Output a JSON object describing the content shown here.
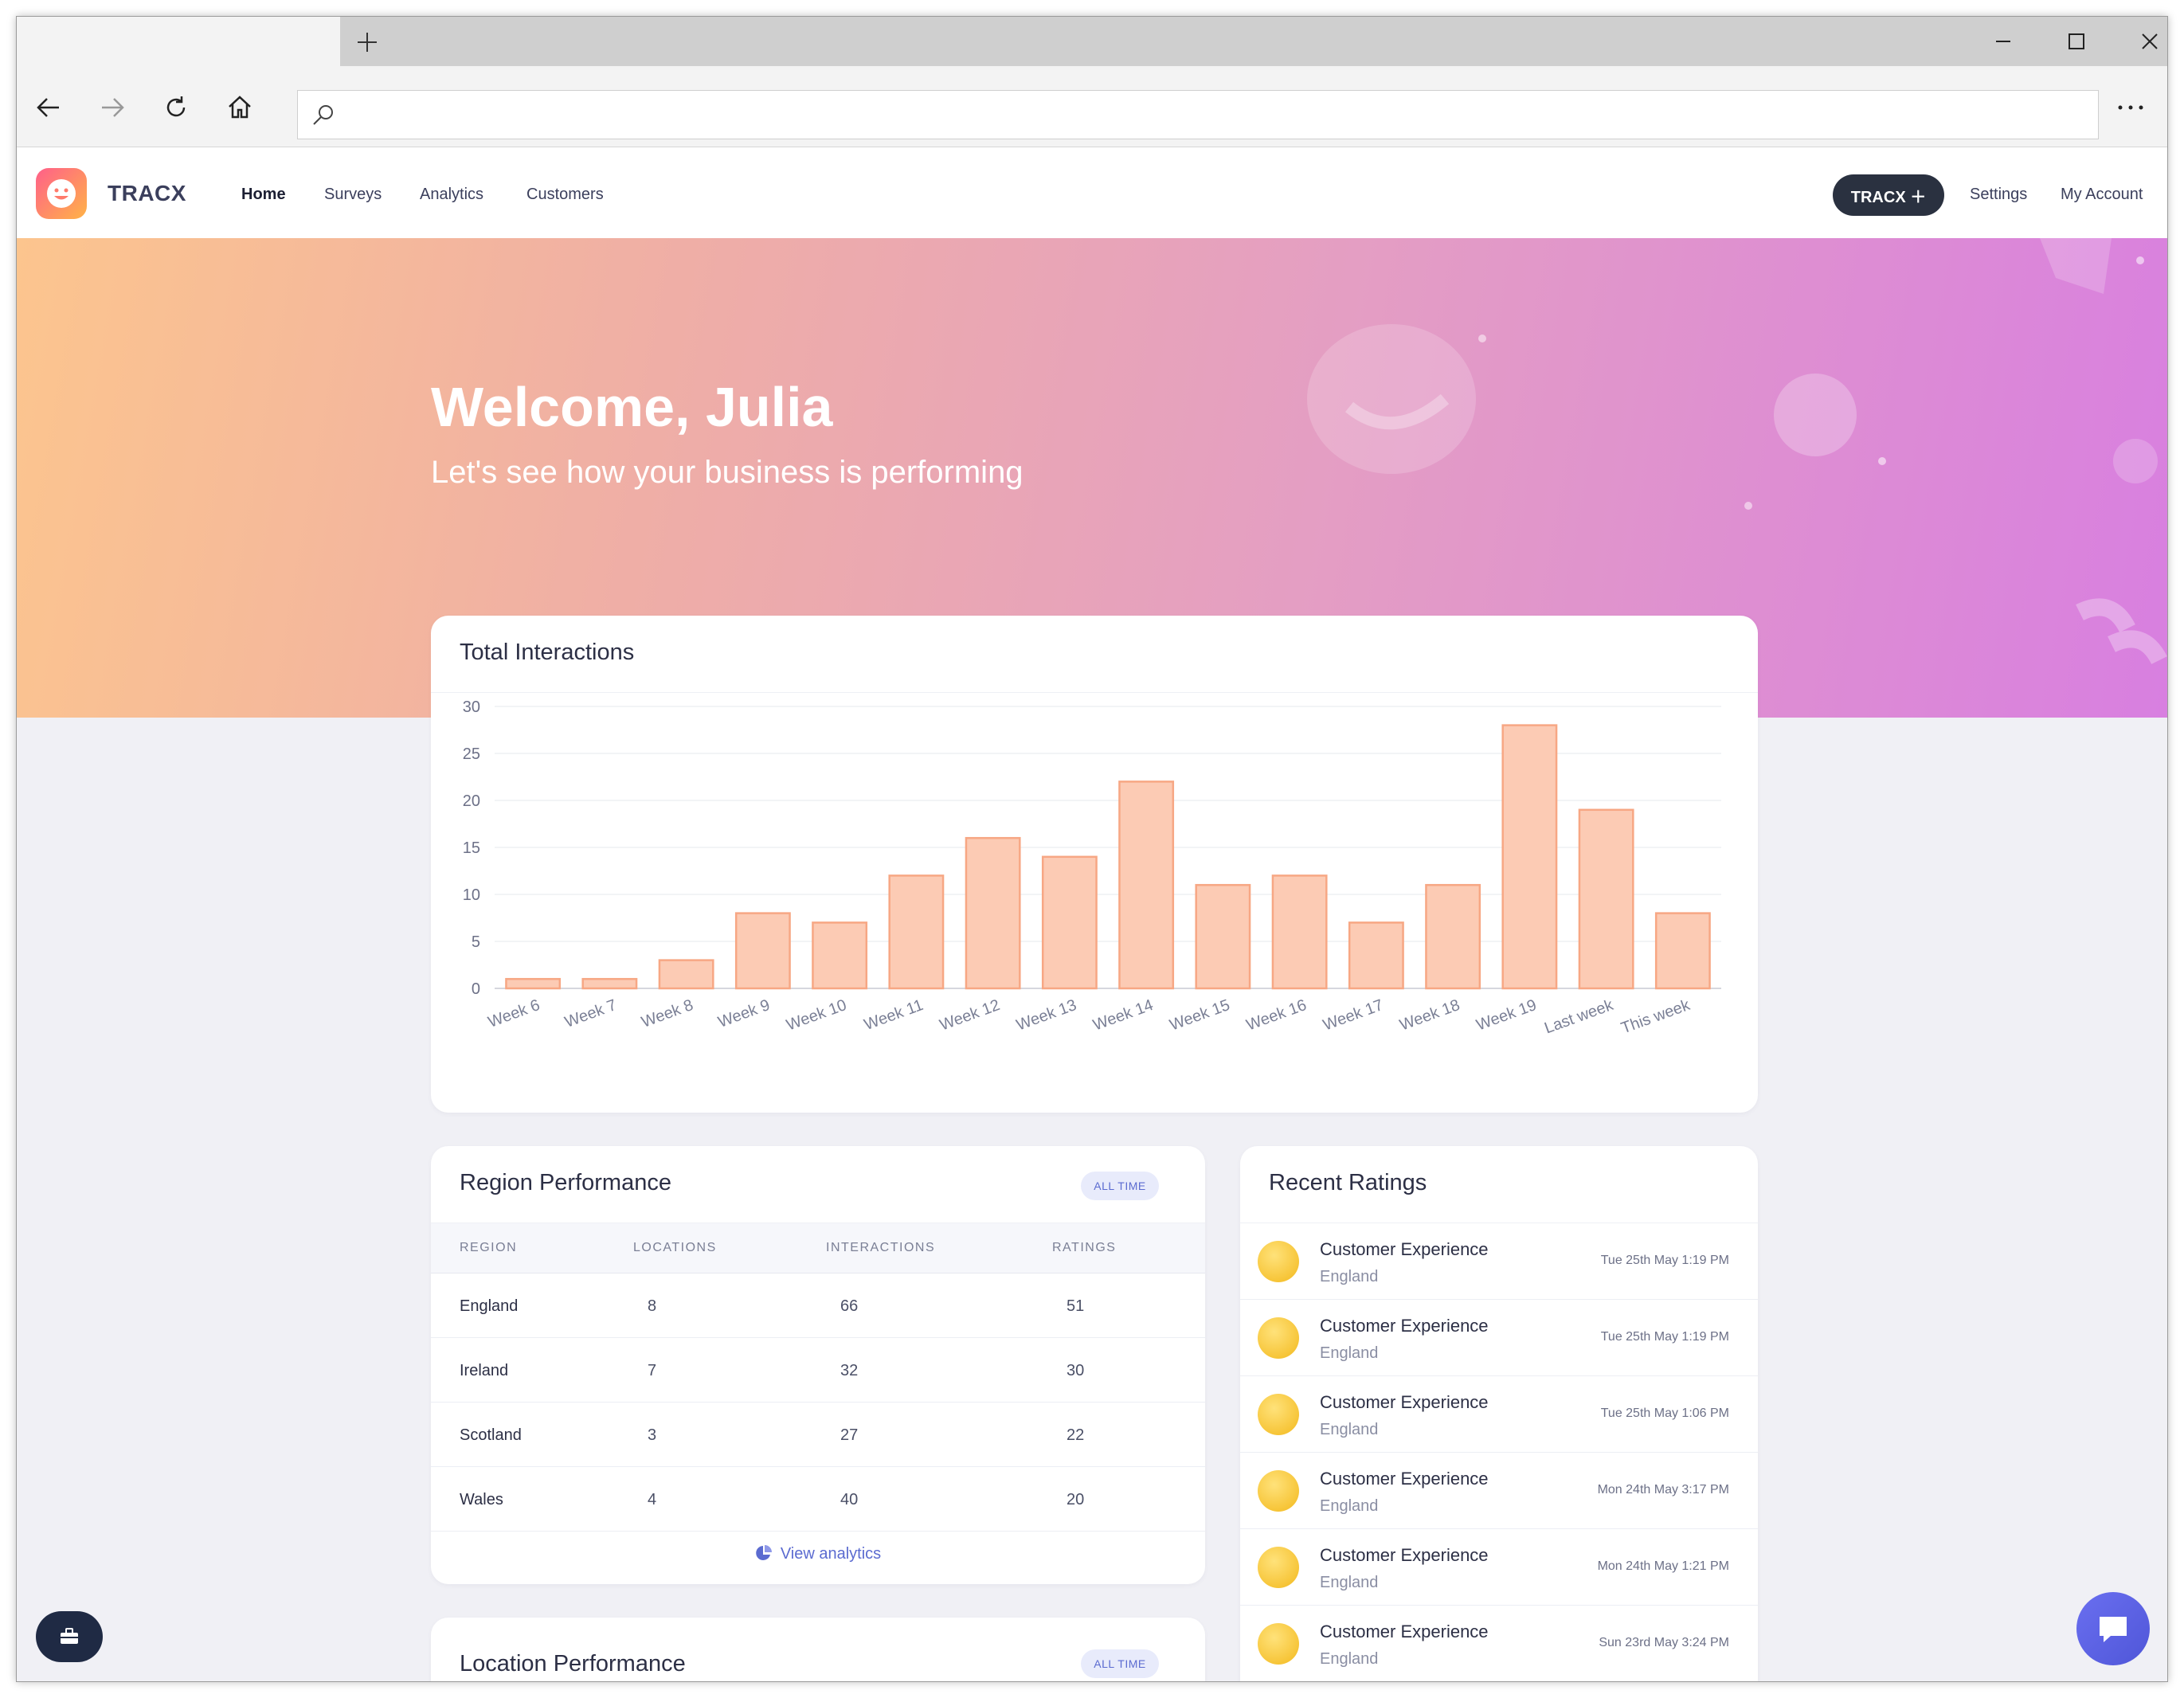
{
  "browser": {
    "new_tab_symbol": "+",
    "address_placeholder": ""
  },
  "nav": {
    "brand": "TRACX",
    "links": [
      "Home",
      "Surveys",
      "Analytics",
      "Customers"
    ],
    "active": "Home",
    "cta": "TRACX ＋",
    "settings": "Settings",
    "account": "My Account"
  },
  "hero": {
    "title": "Welcome, Julia",
    "subtitle": "Let's see how your business is performing"
  },
  "interactions_card": {
    "title": "Total Interactions"
  },
  "chart_data": {
    "type": "bar",
    "categories": [
      "Week 6",
      "Week 7",
      "Week 8",
      "Week 9",
      "Week 10",
      "Week 11",
      "Week 12",
      "Week 13",
      "Week 14",
      "Week 15",
      "Week 16",
      "Week 17",
      "Week 18",
      "Week 19",
      "Last week",
      "This week"
    ],
    "values": [
      1,
      1,
      3,
      8,
      7,
      12,
      16,
      14,
      22,
      11,
      12,
      7,
      11,
      28,
      19,
      8
    ],
    "ylim": [
      0,
      30
    ],
    "yticks": [
      0,
      5,
      10,
      15,
      20,
      25,
      30
    ],
    "grid": true,
    "bar_color": "#fccbb4",
    "bar_stroke": "#f7a784"
  },
  "region_card": {
    "title": "Region Performance",
    "badge": "ALL TIME",
    "columns": [
      "REGION",
      "LOCATIONS",
      "INTERACTIONS",
      "RATINGS"
    ],
    "rows": [
      [
        "England",
        "8",
        "66",
        "51"
      ],
      [
        "Ireland",
        "7",
        "32",
        "30"
      ],
      [
        "Scotland",
        "3",
        "27",
        "22"
      ],
      [
        "Wales",
        "4",
        "40",
        "20"
      ]
    ],
    "link": "View analytics"
  },
  "location_card": {
    "title": "Location Performance",
    "badge": "ALL TIME"
  },
  "ratings_card": {
    "title": "Recent Ratings",
    "items": [
      {
        "title": "Customer Experience",
        "sub": "England",
        "time": "Tue 25th May 1:19 PM"
      },
      {
        "title": "Customer Experience",
        "sub": "England",
        "time": "Tue 25th May 1:19 PM"
      },
      {
        "title": "Customer Experience",
        "sub": "England",
        "time": "Tue 25th May 1:06 PM"
      },
      {
        "title": "Customer Experience",
        "sub": "England",
        "time": "Mon 24th May 3:17 PM"
      },
      {
        "title": "Customer Experience",
        "sub": "England",
        "time": "Mon 24th May 1:21 PM"
      },
      {
        "title": "Customer Experience",
        "sub": "England",
        "time": "Sun 23rd May 3:24 PM"
      }
    ]
  },
  "colors": {
    "accent": "#5b6bd0",
    "dark": "#2a3140"
  }
}
